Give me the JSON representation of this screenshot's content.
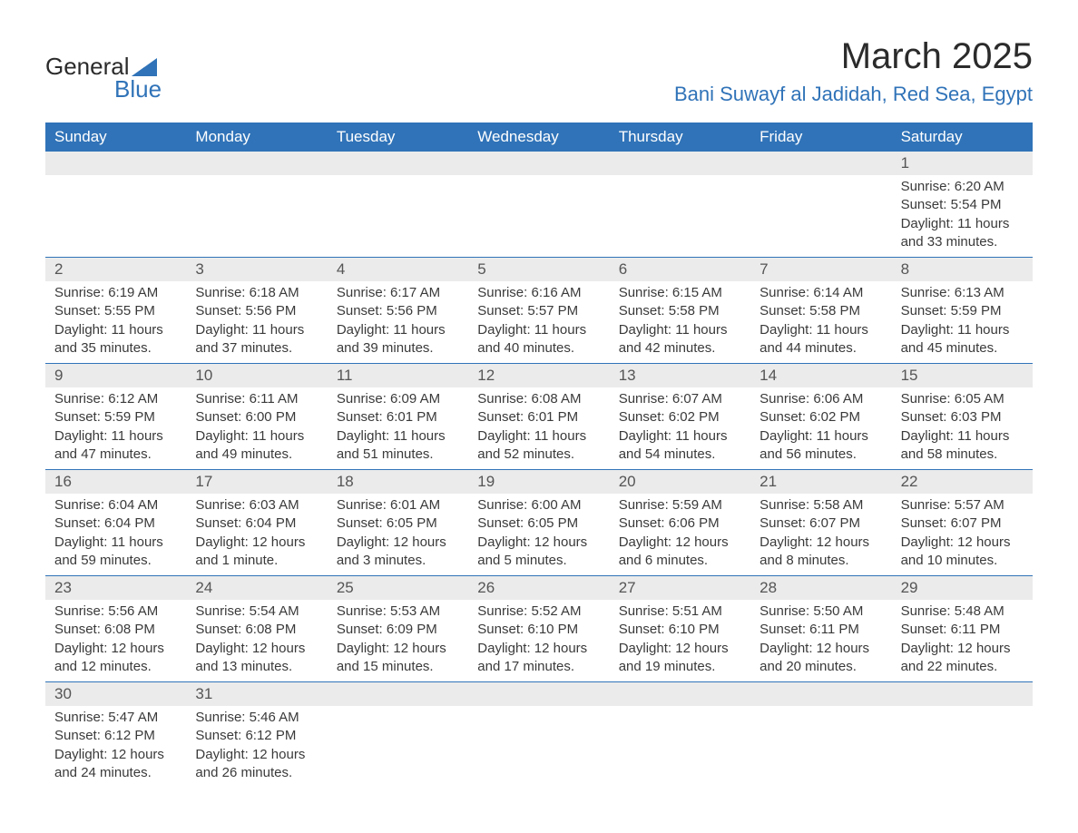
{
  "logo": {
    "word1": "General",
    "word2": "Blue"
  },
  "title": "March 2025",
  "location": "Bani Suwayf al Jadidah, Red Sea, Egypt",
  "colors": {
    "header_bg": "#3073b8",
    "header_text": "#ffffff",
    "daynum_bg": "#ebebeb",
    "body_text": "#3a3a3a",
    "accent": "#3073b8",
    "page_bg": "#ffffff"
  },
  "layout": {
    "columns": 7,
    "title_fontsize": 40,
    "location_fontsize": 22,
    "dow_fontsize": 17,
    "daynum_fontsize": 17,
    "cell_fontsize": 15
  },
  "days_of_week": [
    "Sunday",
    "Monday",
    "Tuesday",
    "Wednesday",
    "Thursday",
    "Friday",
    "Saturday"
  ],
  "weeks": [
    [
      null,
      null,
      null,
      null,
      null,
      null,
      {
        "n": "1",
        "sunrise": "6:20 AM",
        "sunset": "5:54 PM",
        "daylight": "11 hours and 33 minutes."
      }
    ],
    [
      {
        "n": "2",
        "sunrise": "6:19 AM",
        "sunset": "5:55 PM",
        "daylight": "11 hours and 35 minutes."
      },
      {
        "n": "3",
        "sunrise": "6:18 AM",
        "sunset": "5:56 PM",
        "daylight": "11 hours and 37 minutes."
      },
      {
        "n": "4",
        "sunrise": "6:17 AM",
        "sunset": "5:56 PM",
        "daylight": "11 hours and 39 minutes."
      },
      {
        "n": "5",
        "sunrise": "6:16 AM",
        "sunset": "5:57 PM",
        "daylight": "11 hours and 40 minutes."
      },
      {
        "n": "6",
        "sunrise": "6:15 AM",
        "sunset": "5:58 PM",
        "daylight": "11 hours and 42 minutes."
      },
      {
        "n": "7",
        "sunrise": "6:14 AM",
        "sunset": "5:58 PM",
        "daylight": "11 hours and 44 minutes."
      },
      {
        "n": "8",
        "sunrise": "6:13 AM",
        "sunset": "5:59 PM",
        "daylight": "11 hours and 45 minutes."
      }
    ],
    [
      {
        "n": "9",
        "sunrise": "6:12 AM",
        "sunset": "5:59 PM",
        "daylight": "11 hours and 47 minutes."
      },
      {
        "n": "10",
        "sunrise": "6:11 AM",
        "sunset": "6:00 PM",
        "daylight": "11 hours and 49 minutes."
      },
      {
        "n": "11",
        "sunrise": "6:09 AM",
        "sunset": "6:01 PM",
        "daylight": "11 hours and 51 minutes."
      },
      {
        "n": "12",
        "sunrise": "6:08 AM",
        "sunset": "6:01 PM",
        "daylight": "11 hours and 52 minutes."
      },
      {
        "n": "13",
        "sunrise": "6:07 AM",
        "sunset": "6:02 PM",
        "daylight": "11 hours and 54 minutes."
      },
      {
        "n": "14",
        "sunrise": "6:06 AM",
        "sunset": "6:02 PM",
        "daylight": "11 hours and 56 minutes."
      },
      {
        "n": "15",
        "sunrise": "6:05 AM",
        "sunset": "6:03 PM",
        "daylight": "11 hours and 58 minutes."
      }
    ],
    [
      {
        "n": "16",
        "sunrise": "6:04 AM",
        "sunset": "6:04 PM",
        "daylight": "11 hours and 59 minutes."
      },
      {
        "n": "17",
        "sunrise": "6:03 AM",
        "sunset": "6:04 PM",
        "daylight": "12 hours and 1 minute."
      },
      {
        "n": "18",
        "sunrise": "6:01 AM",
        "sunset": "6:05 PM",
        "daylight": "12 hours and 3 minutes."
      },
      {
        "n": "19",
        "sunrise": "6:00 AM",
        "sunset": "6:05 PM",
        "daylight": "12 hours and 5 minutes."
      },
      {
        "n": "20",
        "sunrise": "5:59 AM",
        "sunset": "6:06 PM",
        "daylight": "12 hours and 6 minutes."
      },
      {
        "n": "21",
        "sunrise": "5:58 AM",
        "sunset": "6:07 PM",
        "daylight": "12 hours and 8 minutes."
      },
      {
        "n": "22",
        "sunrise": "5:57 AM",
        "sunset": "6:07 PM",
        "daylight": "12 hours and 10 minutes."
      }
    ],
    [
      {
        "n": "23",
        "sunrise": "5:56 AM",
        "sunset": "6:08 PM",
        "daylight": "12 hours and 12 minutes."
      },
      {
        "n": "24",
        "sunrise": "5:54 AM",
        "sunset": "6:08 PM",
        "daylight": "12 hours and 13 minutes."
      },
      {
        "n": "25",
        "sunrise": "5:53 AM",
        "sunset": "6:09 PM",
        "daylight": "12 hours and 15 minutes."
      },
      {
        "n": "26",
        "sunrise": "5:52 AM",
        "sunset": "6:10 PM",
        "daylight": "12 hours and 17 minutes."
      },
      {
        "n": "27",
        "sunrise": "5:51 AM",
        "sunset": "6:10 PM",
        "daylight": "12 hours and 19 minutes."
      },
      {
        "n": "28",
        "sunrise": "5:50 AM",
        "sunset": "6:11 PM",
        "daylight": "12 hours and 20 minutes."
      },
      {
        "n": "29",
        "sunrise": "5:48 AM",
        "sunset": "6:11 PM",
        "daylight": "12 hours and 22 minutes."
      }
    ],
    [
      {
        "n": "30",
        "sunrise": "5:47 AM",
        "sunset": "6:12 PM",
        "daylight": "12 hours and 24 minutes."
      },
      {
        "n": "31",
        "sunrise": "5:46 AM",
        "sunset": "6:12 PM",
        "daylight": "12 hours and 26 minutes."
      },
      null,
      null,
      null,
      null,
      null
    ]
  ],
  "labels": {
    "sunrise_prefix": "Sunrise: ",
    "sunset_prefix": "Sunset: ",
    "daylight_prefix": "Daylight: "
  }
}
